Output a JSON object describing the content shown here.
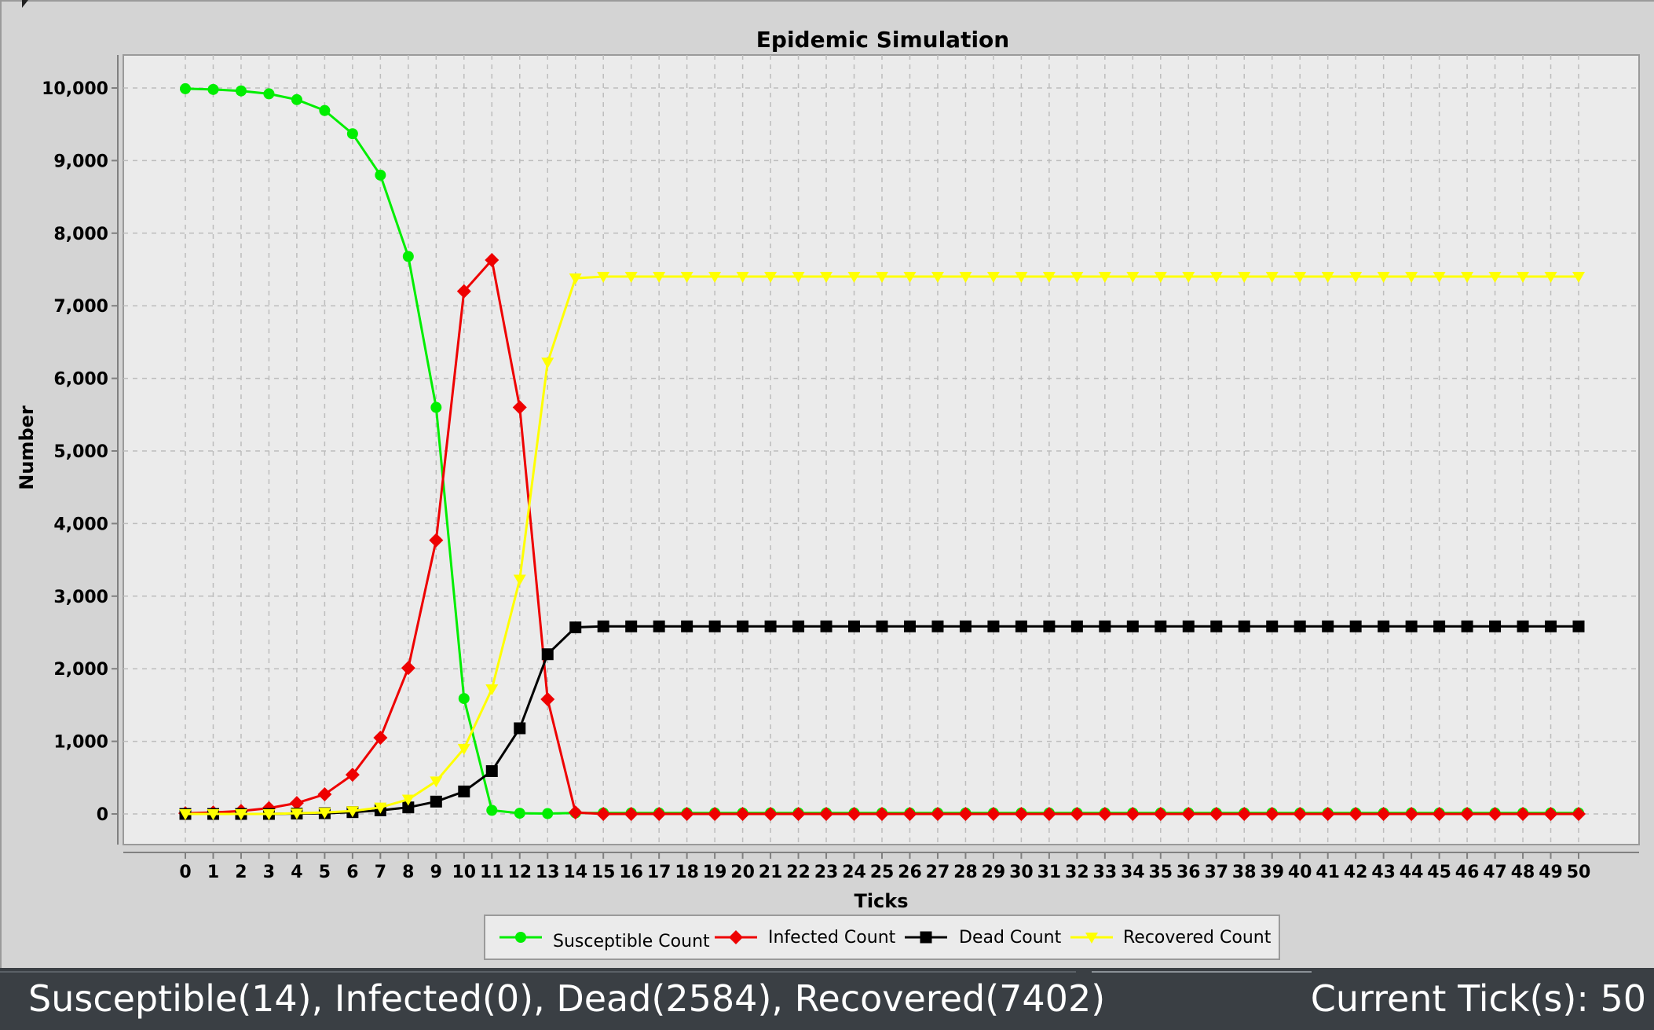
{
  "chart_data": {
    "type": "line",
    "title": "Epidemic Simulation",
    "xlabel": "Ticks",
    "ylabel": "Number",
    "x": [
      0,
      1,
      2,
      3,
      4,
      5,
      6,
      7,
      8,
      9,
      10,
      11,
      12,
      13,
      14,
      15,
      16,
      17,
      18,
      19,
      20,
      21,
      22,
      23,
      24,
      25,
      26,
      27,
      28,
      29,
      30,
      31,
      32,
      33,
      34,
      35,
      36,
      37,
      38,
      39,
      40,
      41,
      42,
      43,
      44,
      45,
      46,
      47,
      48,
      49,
      50
    ],
    "ylim": [
      -500,
      10450
    ],
    "yticks": [
      0,
      1000,
      2000,
      3000,
      4000,
      5000,
      6000,
      7000,
      8000,
      9000,
      10000
    ],
    "ytick_labels": [
      "0",
      "1,000",
      "2,000",
      "3,000",
      "4,000",
      "5,000",
      "6,000",
      "7,000",
      "8,000",
      "9,000",
      "10,000"
    ],
    "grid": true,
    "legend_position": "bottom",
    "series": [
      {
        "name": "Susceptible Count",
        "color": "#00ee00",
        "marker": "circle",
        "values": [
          9990,
          9980,
          9960,
          9920,
          9840,
          9690,
          9370,
          8800,
          7680,
          5600,
          1590,
          50,
          10,
          5,
          14,
          14,
          14,
          14,
          14,
          14,
          14,
          14,
          14,
          14,
          14,
          14,
          14,
          14,
          14,
          14,
          14,
          14,
          14,
          14,
          14,
          14,
          14,
          14,
          14,
          14,
          14,
          14,
          14,
          14,
          14,
          14,
          14,
          14,
          14,
          14,
          14
        ]
      },
      {
        "name": "Infected Count",
        "color": "#ee0000",
        "marker": "diamond",
        "values": [
          10,
          20,
          40,
          80,
          150,
          270,
          540,
          1050,
          2010,
          3770,
          7200,
          7630,
          5600,
          1580,
          20,
          0,
          0,
          0,
          0,
          0,
          0,
          0,
          0,
          0,
          0,
          0,
          0,
          0,
          0,
          0,
          0,
          0,
          0,
          0,
          0,
          0,
          0,
          0,
          0,
          0,
          0,
          0,
          0,
          0,
          0,
          0,
          0,
          0,
          0,
          0,
          0
        ]
      },
      {
        "name": "Dead Count",
        "color": "#000000",
        "marker": "square",
        "values": [
          0,
          0,
          0,
          0,
          5,
          10,
          25,
          50,
          90,
          170,
          310,
          590,
          1180,
          2200,
          2570,
          2584,
          2584,
          2584,
          2584,
          2584,
          2584,
          2584,
          2584,
          2584,
          2584,
          2584,
          2584,
          2584,
          2584,
          2584,
          2584,
          2584,
          2584,
          2584,
          2584,
          2584,
          2584,
          2584,
          2584,
          2584,
          2584,
          2584,
          2584,
          2584,
          2584,
          2584,
          2584,
          2584,
          2584,
          2584,
          2584
        ]
      },
      {
        "name": "Recovered Count",
        "color": "#ffff00",
        "marker": "triangle-down",
        "values": [
          0,
          0,
          0,
          0,
          10,
          20,
          40,
          90,
          200,
          450,
          900,
          1720,
          3230,
          6220,
          7380,
          7402,
          7402,
          7402,
          7402,
          7402,
          7402,
          7402,
          7402,
          7402,
          7402,
          7402,
          7402,
          7402,
          7402,
          7402,
          7402,
          7402,
          7402,
          7402,
          7402,
          7402,
          7402,
          7402,
          7402,
          7402,
          7402,
          7402,
          7402,
          7402,
          7402,
          7402,
          7402,
          7402,
          7402,
          7402,
          7402
        ]
      }
    ]
  },
  "status": {
    "left_text": "Susceptible(14), Infected(0), Dead(2584), Recovered(7402)",
    "right_text": "Current Tick(s): 50"
  }
}
